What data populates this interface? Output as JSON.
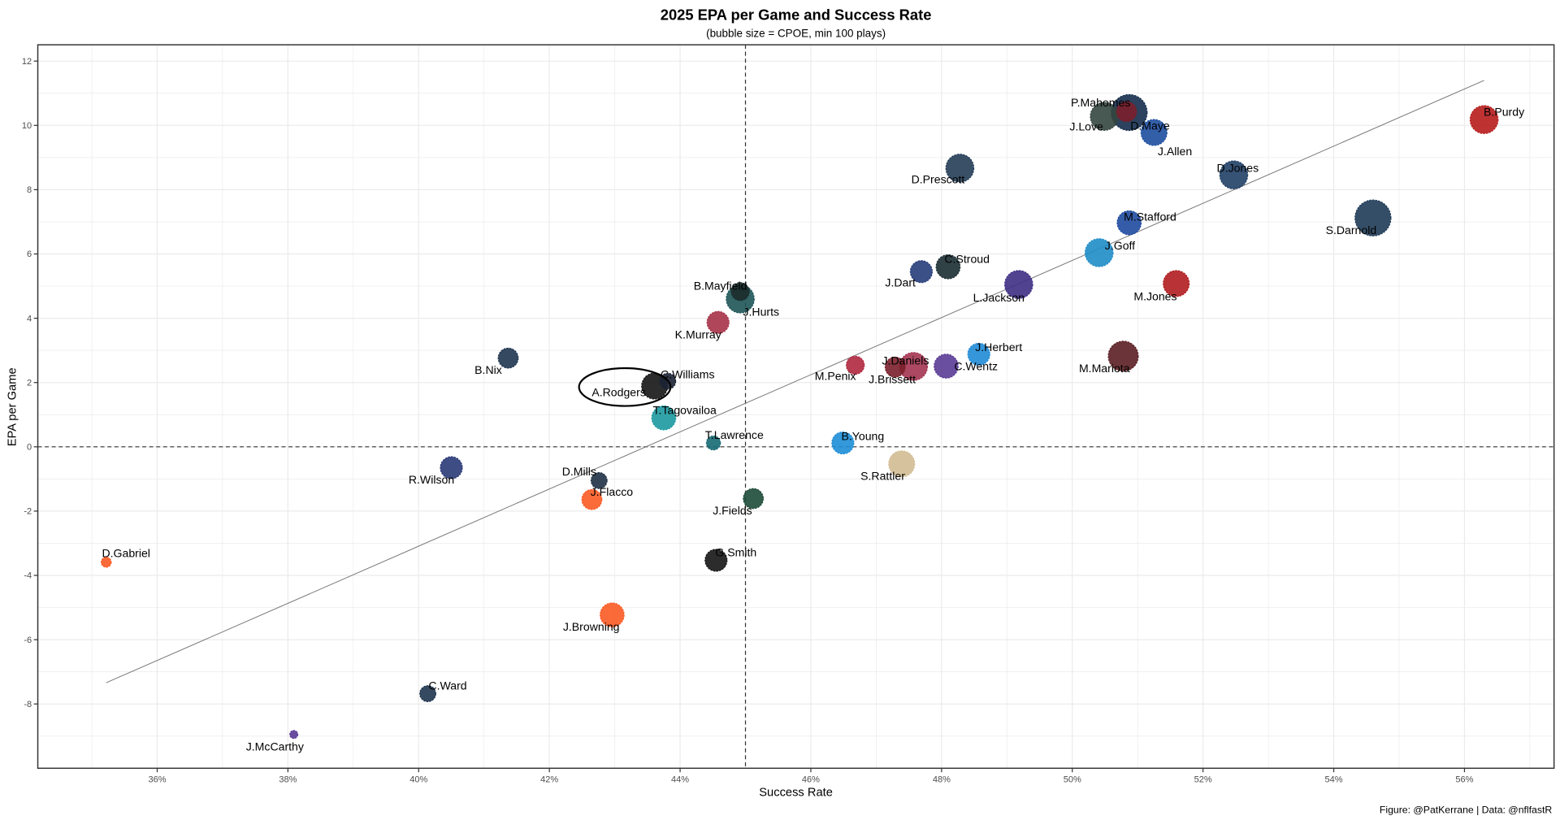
{
  "chart_data": {
    "type": "scatter",
    "title": "2025 EPA per Game and Success Rate",
    "subtitle": "(bubble size = CPOE, min 100 plays)",
    "xlabel": "Success Rate",
    "ylabel": "EPA per Game",
    "caption": "Figure: @PatKerrane | Data: @nflfastR",
    "xlim": [
      34.0,
      57.2
    ],
    "ylim": [
      -10.0,
      12.5
    ],
    "x_ticks": [
      36,
      38,
      40,
      42,
      44,
      46,
      48,
      50,
      52,
      54,
      56
    ],
    "x_tick_labels": [
      "36%",
      "38%",
      "40%",
      "42%",
      "44%",
      "46%",
      "48%",
      "50%",
      "52%",
      "54%",
      "56%"
    ],
    "y_ticks": [
      -8,
      -6,
      -4,
      -2,
      0,
      2,
      4,
      6,
      8,
      10,
      12
    ],
    "y_tick_labels": [
      "-8",
      "-6",
      "-4",
      "-2",
      "0",
      "2",
      "4",
      "6",
      "8",
      "10",
      "12"
    ],
    "grid": true,
    "reference_lines": {
      "x": 45.0,
      "y": 0
    },
    "trend_line": {
      "x": [
        35.22,
        56.3
      ],
      "y": [
        -7.34,
        11.4
      ]
    },
    "highlight": "A.Rodgers",
    "points": [
      {
        "name": "B.Purdy",
        "x": 56.3,
        "y": 10.18,
        "size": 14,
        "color": "#b71c1c"
      },
      {
        "name": "S.Darnold",
        "x": 54.6,
        "y": 7.12,
        "size": 18,
        "color": "#1f3b57"
      },
      {
        "name": "D.Jones",
        "x": 52.47,
        "y": 8.46,
        "size": 14,
        "color": "#203f66"
      },
      {
        "name": "J.Love",
        "x": 50.49,
        "y": 10.28,
        "size": 14,
        "color": "#34463f"
      },
      {
        "name": "P.Mahomes",
        "x": 50.83,
        "y": 10.43,
        "size": 10,
        "color": "#7a1f2b"
      },
      {
        "name": "D.Maye",
        "x": 50.87,
        "y": 10.4,
        "size": 18,
        "color": "#152e4d"
      },
      {
        "name": "J.Allen",
        "x": 51.25,
        "y": 9.78,
        "size": 13,
        "color": "#1d4ea0"
      },
      {
        "name": "D.Prescott",
        "x": 48.28,
        "y": 8.67,
        "size": 14,
        "color": "#233d57"
      },
      {
        "name": "M.Stafford",
        "x": 50.87,
        "y": 6.97,
        "size": 12,
        "color": "#1f4aa0"
      },
      {
        "name": "J.Goff",
        "x": 50.41,
        "y": 6.04,
        "size": 14,
        "color": "#1f8dc8"
      },
      {
        "name": "C.Stroud",
        "x": 48.1,
        "y": 5.6,
        "size": 12,
        "color": "#1b2e33"
      },
      {
        "name": "J.Dart",
        "x": 47.69,
        "y": 5.45,
        "size": 11,
        "color": "#263d7a"
      },
      {
        "name": "L.Jackson",
        "x": 49.18,
        "y": 5.05,
        "size": 14,
        "color": "#3e2f84"
      },
      {
        "name": "M.Jones",
        "x": 51.59,
        "y": 5.08,
        "size": 13,
        "color": "#b11d20"
      },
      {
        "name": "J.Hurts",
        "x": 44.92,
        "y": 4.6,
        "size": 14,
        "color": "#1e5558"
      },
      {
        "name": "B.Mayfield",
        "x": 44.92,
        "y": 4.83,
        "size": 9,
        "color": "#1b2b2b"
      },
      {
        "name": "K.Murray",
        "x": 44.58,
        "y": 3.87,
        "size": 11,
        "color": "#a63248"
      },
      {
        "name": "J.Herbert",
        "x": 48.57,
        "y": 2.88,
        "size": 11,
        "color": "#1f8bd6"
      },
      {
        "name": "M.Mariota",
        "x": 50.78,
        "y": 2.82,
        "size": 15,
        "color": "#5a1e22"
      },
      {
        "name": "J.Daniels",
        "x": 47.57,
        "y": 2.5,
        "size": 14,
        "color": "#a33450"
      },
      {
        "name": "J.Brissett",
        "x": 47.29,
        "y": 2.48,
        "size": 10,
        "color": "#7a1f2b"
      },
      {
        "name": "M.Penix",
        "x": 46.68,
        "y": 2.54,
        "size": 9,
        "color": "#b0283f"
      },
      {
        "name": "C.Wentz",
        "x": 48.07,
        "y": 2.51,
        "size": 12,
        "color": "#5a3b96"
      },
      {
        "name": "B.Nix",
        "x": 41.37,
        "y": 2.76,
        "size": 10,
        "color": "#1f3550"
      },
      {
        "name": "C.Williams",
        "x": 43.81,
        "y": 2.04,
        "size": 8,
        "color": "#1b2233"
      },
      {
        "name": "A.Rodgers",
        "x": 43.61,
        "y": 1.89,
        "size": 13,
        "color": "#151515"
      },
      {
        "name": "T.Tagovailoa",
        "x": 43.75,
        "y": 0.9,
        "size": 12,
        "color": "#1c9aa0"
      },
      {
        "name": "T.Lawrence",
        "x": 44.51,
        "y": 0.12,
        "size": 7,
        "color": "#166a74"
      },
      {
        "name": "B.Young",
        "x": 46.49,
        "y": 0.12,
        "size": 11,
        "color": "#1e8ed6"
      },
      {
        "name": "S.Rattler",
        "x": 47.39,
        "y": -0.53,
        "size": 13,
        "color": "#d2bc94"
      },
      {
        "name": "R.Wilson",
        "x": 40.5,
        "y": -0.65,
        "size": 11,
        "color": "#2a3a78"
      },
      {
        "name": "D.Mills",
        "x": 42.76,
        "y": -1.05,
        "size": 8,
        "color": "#1f3145"
      },
      {
        "name": "J.Flacco",
        "x": 42.65,
        "y": -1.64,
        "size": 10,
        "color": "#fb5a23"
      },
      {
        "name": "J.Fields",
        "x": 45.12,
        "y": -1.61,
        "size": 10,
        "color": "#1c4a38"
      },
      {
        "name": "D.Gabriel",
        "x": 35.22,
        "y": -3.59,
        "size": 5,
        "color": "#fb5a23"
      },
      {
        "name": "G.Smith",
        "x": 44.55,
        "y": -3.53,
        "size": 11,
        "color": "#151515"
      },
      {
        "name": "J.Browning",
        "x": 42.96,
        "y": -5.23,
        "size": 12,
        "color": "#fb5a23"
      },
      {
        "name": "C.Ward",
        "x": 40.14,
        "y": -7.68,
        "size": 8,
        "color": "#1f3550"
      },
      {
        "name": "J.McCarthy",
        "x": 38.09,
        "y": -8.95,
        "size": 4,
        "color": "#5b3a96"
      }
    ]
  }
}
